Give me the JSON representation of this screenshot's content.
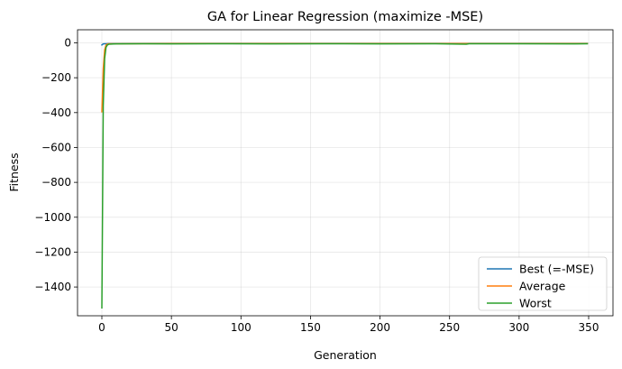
{
  "chart_data": {
    "type": "line",
    "title": "GA for Linear Regression (maximize -MSE)",
    "xlabel": "Generation",
    "ylabel": "Fitness",
    "xlim": [
      -17.5,
      367.5
    ],
    "ylim": [
      -1565,
      75
    ],
    "xticks": [
      0,
      50,
      100,
      150,
      200,
      250,
      300,
      350
    ],
    "yticks": [
      0,
      -200,
      -400,
      -600,
      -800,
      -1000,
      -1200,
      -1400
    ],
    "grid": true,
    "legend_position": "lower-right",
    "series": [
      {
        "name": "Best (=-MSE)",
        "color": "#1f77b4",
        "points": [
          [
            0,
            -12
          ],
          [
            1,
            -6
          ],
          [
            2,
            -5
          ],
          [
            3,
            -5
          ],
          [
            5,
            -4
          ],
          [
            10,
            -4
          ],
          [
            50,
            -3
          ],
          [
            100,
            -3
          ],
          [
            200,
            -3
          ],
          [
            300,
            -3
          ],
          [
            349,
            -3
          ]
        ]
      },
      {
        "name": "Average",
        "color": "#ff7f0e",
        "points": [
          [
            0,
            -395
          ],
          [
            1,
            -150
          ],
          [
            2,
            -40
          ],
          [
            3,
            -12
          ],
          [
            4,
            -7
          ],
          [
            5,
            -5
          ],
          [
            10,
            -5
          ],
          [
            50,
            -4
          ],
          [
            100,
            -4
          ],
          [
            200,
            -4
          ],
          [
            300,
            -4
          ],
          [
            349,
            -4
          ]
        ]
      },
      {
        "name": "Worst",
        "color": "#2ca02c",
        "points": [
          [
            0,
            -1520
          ],
          [
            1,
            -360
          ],
          [
            2,
            -90
          ],
          [
            3,
            -25
          ],
          [
            4,
            -12
          ],
          [
            5,
            -8
          ],
          [
            10,
            -6
          ],
          [
            30,
            -5
          ],
          [
            50,
            -6
          ],
          [
            80,
            -5
          ],
          [
            120,
            -6
          ],
          [
            160,
            -5
          ],
          [
            200,
            -6
          ],
          [
            240,
            -5
          ],
          [
            262,
            -8
          ],
          [
            264,
            -5
          ],
          [
            300,
            -5
          ],
          [
            340,
            -6
          ],
          [
            349,
            -5
          ]
        ]
      }
    ]
  }
}
